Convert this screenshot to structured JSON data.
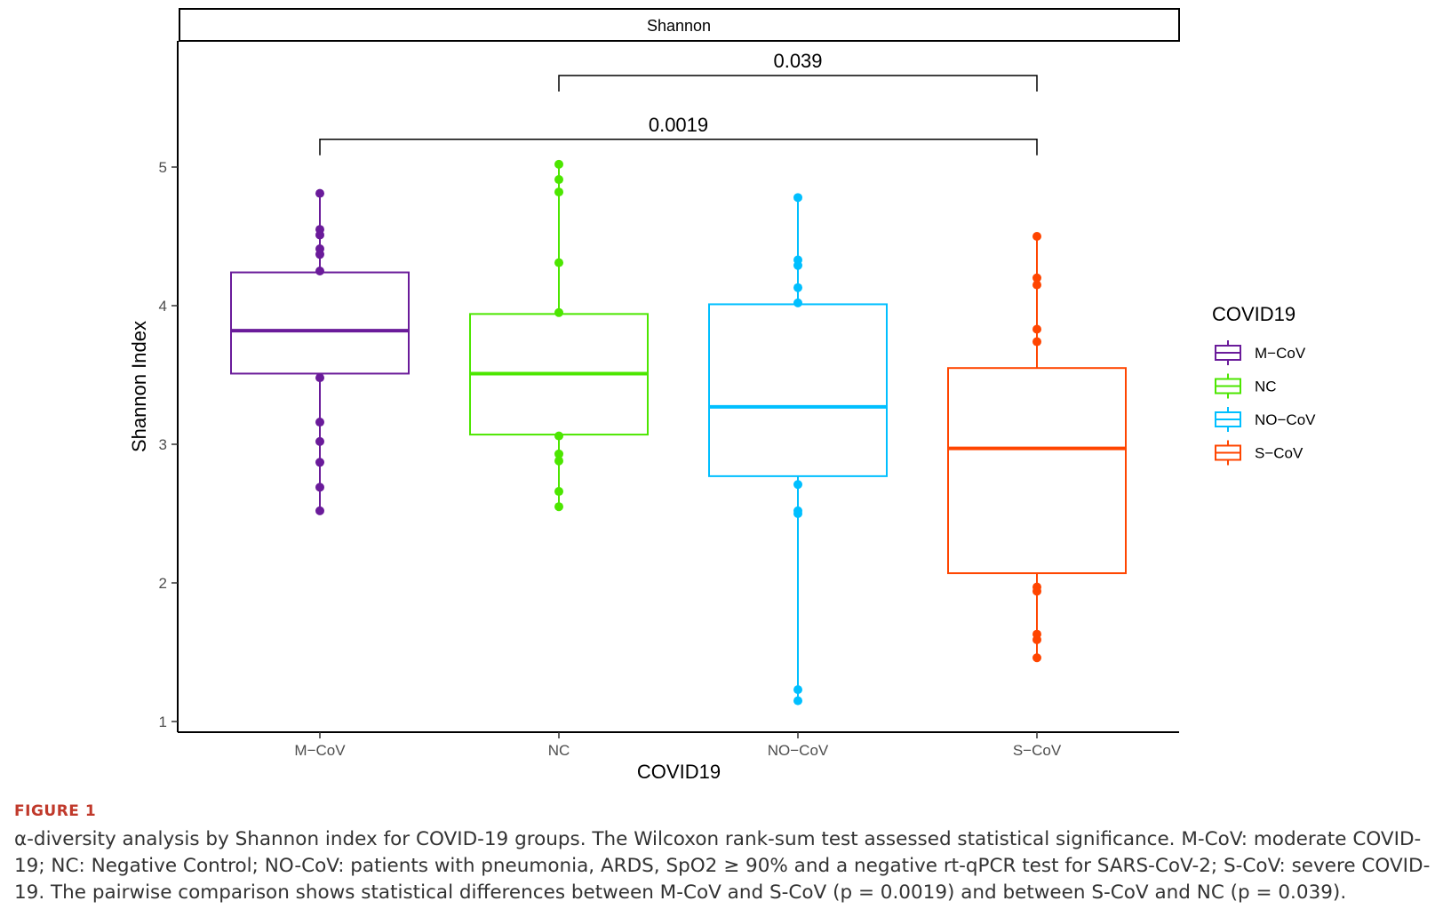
{
  "chart_data": {
    "type": "box",
    "facet_title": "Shannon",
    "xlabel": "COVID19",
    "ylabel": "Shannon Index",
    "ylim": [
      0.95,
      6.0
    ],
    "yticks": [
      1,
      2,
      3,
      4,
      5
    ],
    "categories": [
      "M−CoV",
      "NC",
      "NO−CoV",
      "S−CoV"
    ],
    "legend": {
      "title": "COVID19",
      "position": "right",
      "entries": [
        "M−CoV",
        "NC",
        "NO−CoV",
        "S−CoV"
      ]
    },
    "series": [
      {
        "name": "M−CoV",
        "color": "#6a1b9a",
        "q1": 3.51,
        "median": 3.82,
        "q3": 4.24,
        "whisker_low": 2.52,
        "whisker_high": 4.81,
        "points": [
          2.52,
          2.69,
          2.87,
          3.02,
          3.16,
          3.48,
          4.25,
          4.37,
          4.41,
          4.51,
          4.55,
          4.81
        ]
      },
      {
        "name": "NC",
        "color": "#4ce600",
        "q1": 3.07,
        "median": 3.51,
        "q3": 3.94,
        "whisker_low": 2.55,
        "whisker_high": 5.02,
        "points": [
          2.55,
          2.66,
          2.88,
          2.93,
          3.06,
          3.95,
          4.31,
          4.82,
          4.91,
          5.02
        ]
      },
      {
        "name": "NO−CoV",
        "color": "#00bfff",
        "q1": 2.77,
        "median": 3.27,
        "q3": 4.01,
        "whisker_low": 1.15,
        "whisker_high": 4.78,
        "points": [
          1.15,
          1.23,
          2.5,
          2.52,
          2.71,
          4.02,
          4.13,
          4.29,
          4.33,
          4.78
        ]
      },
      {
        "name": "S−CoV",
        "color": "#ff4500",
        "q1": 2.07,
        "median": 2.97,
        "q3": 3.55,
        "whisker_low": 1.46,
        "whisker_high": 4.5,
        "points": [
          1.46,
          1.59,
          1.63,
          1.94,
          1.97,
          3.74,
          3.83,
          4.15,
          4.2,
          4.5
        ]
      }
    ],
    "comparisons": [
      {
        "from": "NC",
        "to": "S−CoV",
        "label": "0.039",
        "y": 5.66
      },
      {
        "from": "M−CoV",
        "to": "S−CoV",
        "label": "0.0019",
        "y": 5.2
      }
    ]
  },
  "caption": {
    "label": "FIGURE 1",
    "text": "α-diversity analysis by Shannon index for COVID-19 groups. The Wilcoxon rank-sum test assessed statistical significance. M-CoV: moderate COVID-19; NC: Negative Control; NO-CoV: patients with pneumonia, ARDS, SpO2 ≥ 90% and a negative rt-qPCR test for SARS-CoV-2; S-CoV: severe COVID-19. The pairwise comparison shows statistical differences between M-CoV and S-CoV (p = 0.0019) and between S-CoV and NC (p = 0.039)."
  }
}
